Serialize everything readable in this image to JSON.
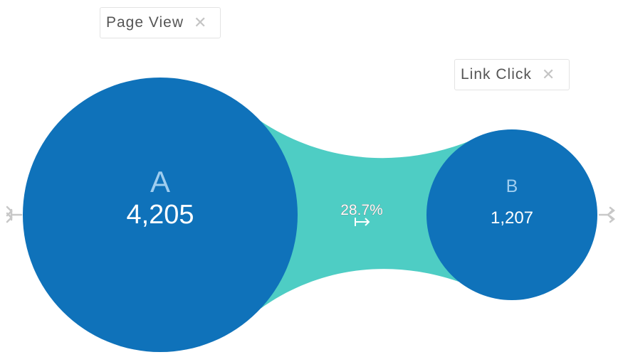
{
  "steps": [
    {
      "letter": "A",
      "event": "Page View",
      "count": "4,205"
    },
    {
      "letter": "B",
      "event": "Link Click",
      "count": "1,207"
    }
  ],
  "conversion": {
    "percent": "28.7%"
  },
  "icons": {
    "close": "close-icon",
    "expand_left": "split-arrow-icon",
    "expand_right": "split-arrow-icon",
    "flow": "arrow-right-bar-icon"
  },
  "colors": {
    "node": "#0f72ba",
    "connector": "#4ecdc4",
    "letter": "#9fcdef",
    "count": "#ffffff",
    "tag_border": "#e3e3e3",
    "icon_gray": "#c8c8c8"
  }
}
